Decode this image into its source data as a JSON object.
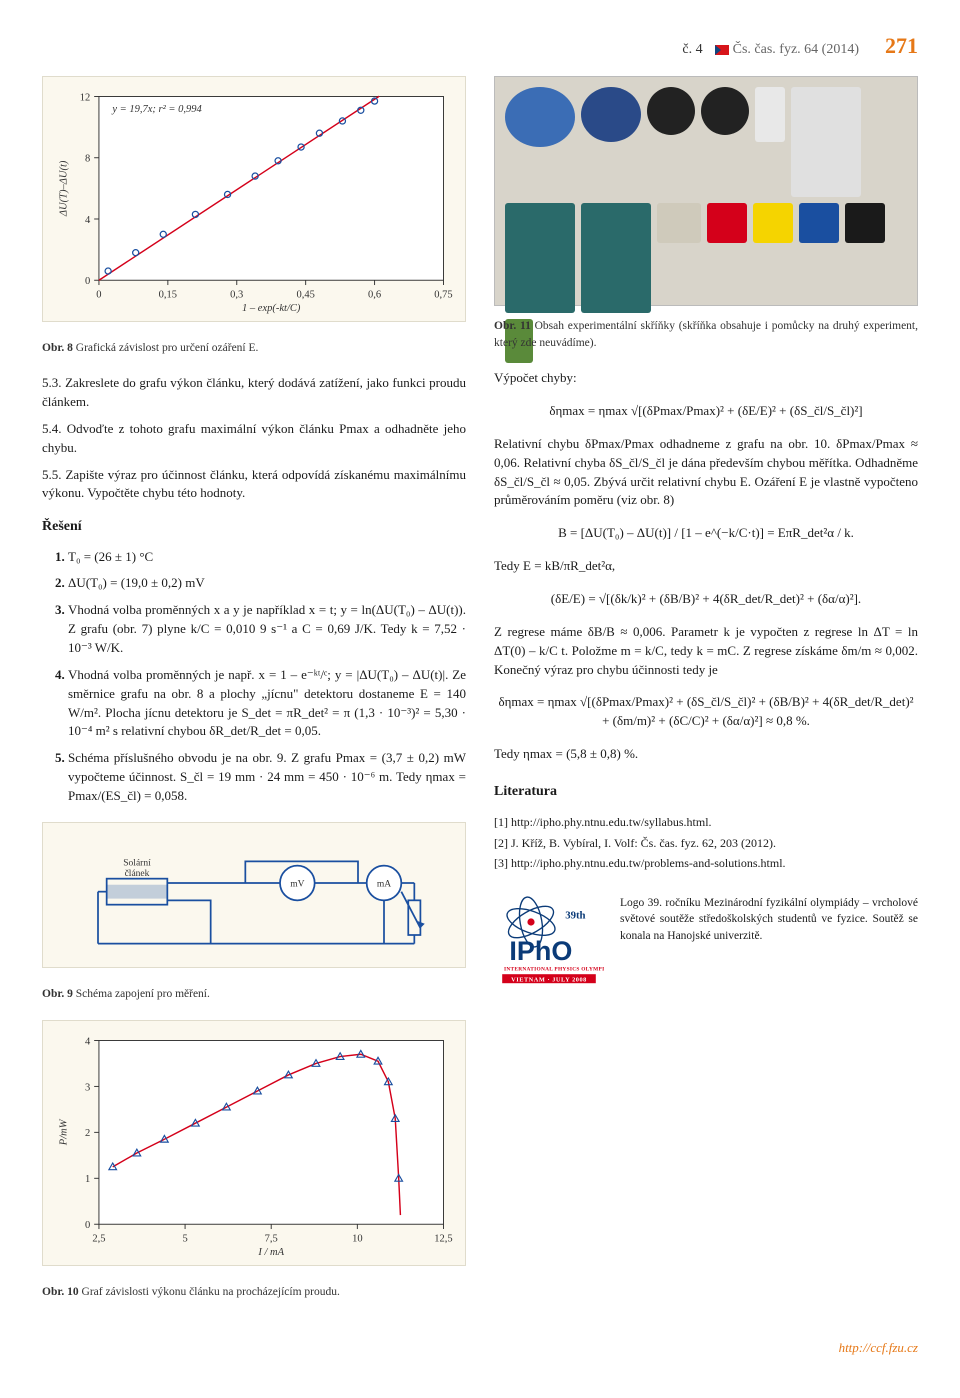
{
  "header": {
    "issue": "č. 4",
    "journal": "Čs. čas. fyz. 64 (2014)",
    "pagenum": "271"
  },
  "chart8": {
    "type": "scatter+line",
    "background_color": "#fbf8ee",
    "plot_bg": "#ffffff",
    "annotation": "y = 19,7x;  r² = 0,994",
    "annotation_fontsize": 11,
    "xlabel": "1 – exp(-kt/C)",
    "ylabel": "ΔU(T)–ΔU(t)",
    "xlim": [
      0,
      0.75
    ],
    "ylim": [
      0,
      12
    ],
    "xticks": [
      0,
      0.15,
      0.3,
      0.45,
      0.6,
      0.75
    ],
    "yticks": [
      0,
      4,
      8,
      12
    ],
    "line_color": "#d4001a",
    "point_color": "#1a4fa0",
    "point_marker": "circle-open",
    "line_width": 1.5,
    "points_x": [
      0.02,
      0.08,
      0.14,
      0.21,
      0.28,
      0.34,
      0.39,
      0.44,
      0.48,
      0.53,
      0.57,
      0.6
    ],
    "points_y": [
      0.6,
      1.8,
      3.0,
      4.3,
      5.6,
      6.8,
      7.8,
      8.7,
      9.6,
      10.4,
      11.1,
      11.7
    ]
  },
  "fig8cap_b": "Obr. 8",
  "fig8cap": "Grafická závislost pro určení ozáření E.",
  "tasks53": "5.3. Zakreslete do grafu výkon článku, který dodává zatížení, jako funkci proudu článkem.",
  "tasks54": "5.4. Odvoďte z tohoto grafu maximální výkon článku Pmax a odhadněte jeho chybu.",
  "tasks55": "5.5. Zapište výraz pro účinnost článku, která odpovídá získanému maximálnímu výkonu. Vypočtěte chybu této hodnoty.",
  "reseni_head": "Řešení",
  "sol": {
    "i1": "T₀ = (26 ± 1) °C",
    "i2": "ΔU(T₀) = (19,0 ± 0,2) mV",
    "i3": "Vhodná volba proměnných x a y je například x = t; y = ln(ΔU(T₀) – ΔU(t)). Z grafu (obr. 7) plyne k/C = 0,010 9 s⁻¹ a C = 0,69 J/K. Tedy k = 7,52 · 10⁻³ W/K.",
    "i4": "Vhodná volba proměnných je např. x = 1 – e⁻ᵏᵗ/ᶜ; y = |ΔU(T₀) – ΔU(t)|. Ze směrnice grafu na obr. 8 a plochy „jícnu\" detektoru dostaneme E = 140 W/m². Plocha jícnu detektoru je S_det = πR_det² = π (1,3 · 10⁻³)² = 5,30 · 10⁻⁴ m² s relativní chybou δR_det/R_det = 0,05.",
    "i5": "Schéma příslušného obvodu je na obr. 9. Z grafu Pmax = (3,7 ± 0,2) mW vypočteme účinnost. S_čl = 19 mm · 24 mm = 450 · 10⁻⁶ m. Tedy ηmax = Pmax/(ES_čl) = 0,058."
  },
  "circuit": {
    "label_cell": "Solární\nčlánek",
    "label_mv": "mV",
    "label_ma": "mA",
    "wire_color": "#1a4fa0",
    "component_color": "#1a4fa0",
    "bg": "#fbf8ee"
  },
  "fig9cap_b": "Obr. 9",
  "fig9cap": "Schéma zapojení pro měření.",
  "chart10": {
    "type": "scatter+curve",
    "background_color": "#fbf8ee",
    "xlabel": "I / mA",
    "ylabel": "P/mW",
    "xlim": [
      2.5,
      12.5
    ],
    "ylim": [
      0,
      4
    ],
    "xticks": [
      2.5,
      5.0,
      7.5,
      10.0,
      12.5
    ],
    "yticks": [
      0,
      1,
      2,
      3,
      4
    ],
    "line_color": "#d4001a",
    "point_color": "#1a4fa0",
    "point_marker": "triangle-open",
    "points_x": [
      2.9,
      3.6,
      4.4,
      5.3,
      6.2,
      7.1,
      8.0,
      8.8,
      9.5,
      10.1,
      10.6,
      10.9,
      11.1,
      11.2
    ],
    "points_y": [
      1.25,
      1.55,
      1.85,
      2.2,
      2.55,
      2.9,
      3.25,
      3.5,
      3.65,
      3.7,
      3.55,
      3.1,
      2.3,
      1.0
    ]
  },
  "fig10cap_b": "Obr. 10",
  "fig10cap": "Graf závislosti výkonu článku na procházejícím proudu.",
  "fig11cap_b": "Obr. 11",
  "fig11cap": "Obsah experimentální skříňky (skříňka obsahuje i pomůcky na druhý experiment, který zde neuvádíme).",
  "right_p1": "Výpočet chyby:",
  "right_f1": "δηmax = ηmax √[(δPmax/Pmax)² + (δE/E)² + (δS_čl/S_čl)²]",
  "right_p2": "Relativní chybu δPmax/Pmax odhadneme z grafu na obr. 10. δPmax/Pmax ≈ 0,06. Relativní chyba δS_čl/S_čl je dána především chybou měřítka. Odhadněme δS_čl/S_čl ≈ 0,05. Zbývá určit relativní chybu E. Ozáření E je vlastně vypočteno průměrováním poměru (viz obr. 8)",
  "right_f2": "B = [ΔU(T₀) – ΔU(t)] / [1 – e^(−k/C·t)] = EπR_det²α / k.",
  "right_p3": "Tedy E = kB/πR_det²α,",
  "right_f3": "(δE/E) = √[(δk/k)² + (δB/B)² + 4(δR_det/R_det)² + (δα/α)²].",
  "right_p4": "Z regrese máme δB/B ≈ 0,006. Parametr k je vypočten z regrese ln ΔT = ln ΔT(0) – k/C t. Položme m = k/C, tedy k = mC. Z regrese získáme δm/m ≈ 0,002. Konečný výraz pro chybu účinnosti tedy je",
  "right_f4": "δηmax = ηmax √[(δPmax/Pmax)² + (δS_čl/S_čl)² + (δB/B)² + 4(δR_det/R_det)² + (δm/m)² + (δC/C)² + (δα/α)²] ≈ 0,8 %.",
  "right_p5": "Tedy ηmax = (5,8 ± 0,8) %.",
  "lit_head": "Literatura",
  "lit": {
    "r1": "[1] http://ipho.phy.ntnu.edu.tw/syllabus.html.",
    "r2": "[2] J. Kříž, B. Vybíral, I. Volf: Čs. čas. fyz. 62, 203 (2012).",
    "r3": "[3] http://ipho.phy.ntnu.edu.tw/problems-and-solutions.html."
  },
  "ipho_text": "Logo 39. ročníku Mezinárodní fyzikální olympiády – vrcholové světové soutěže středoškolských studentů ve fyzice. Soutěž se konala na Hanojské univerzitě.",
  "ipho_logo": {
    "top": "39th",
    "main": "IPhO",
    "sub1": "INTERNATIONAL PHYSICS OLYMPIAD",
    "sub2": "VIETNAM · JULY 2008",
    "color_main": "#0b3b78",
    "color_accent": "#d4001a"
  },
  "footer_link": "http://ccf.fzu.cz"
}
